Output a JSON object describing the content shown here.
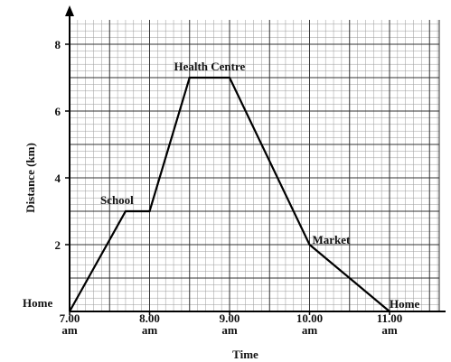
{
  "chart_data": {
    "type": "line",
    "title": "",
    "xlabel": "Time",
    "ylabel": "Distance (km)",
    "xlim": [
      0,
      4
    ],
    "ylim": [
      0,
      9
    ],
    "x_ticks": [
      {
        "value": 0,
        "line1": "7.00",
        "line2": "am"
      },
      {
        "value": 1,
        "line1": "8.00",
        "line2": "am"
      },
      {
        "value": 2,
        "line1": "9.00",
        "line2": "am"
      },
      {
        "value": 3,
        "line1": "10.00",
        "line2": "am"
      },
      {
        "value": 4,
        "line1": "11.00",
        "line2": "am"
      }
    ],
    "y_ticks": [
      {
        "value": 2,
        "label": "2"
      },
      {
        "value": 4,
        "label": "4"
      },
      {
        "value": 6,
        "label": "6"
      },
      {
        "value": 8,
        "label": "8"
      }
    ],
    "grid": true,
    "series": [
      {
        "points": [
          {
            "x": 0,
            "y": 0
          },
          {
            "x": 0.7,
            "y": 3
          },
          {
            "x": 1.0,
            "y": 3
          },
          {
            "x": 1.5,
            "y": 7
          },
          {
            "x": 2.0,
            "y": 7
          },
          {
            "x": 3.0,
            "y": 2
          },
          {
            "x": 4.0,
            "y": 0
          }
        ]
      }
    ],
    "annotations": [
      {
        "text": "Home",
        "x": 0,
        "y": 0
      },
      {
        "text": "School",
        "x": 0.7,
        "y": 3
      },
      {
        "text": "Health Centre",
        "x": 1.75,
        "y": 7
      },
      {
        "text": "Market",
        "x": 3.0,
        "y": 2
      },
      {
        "text": "Home",
        "x": 4.0,
        "y": 0
      }
    ]
  }
}
